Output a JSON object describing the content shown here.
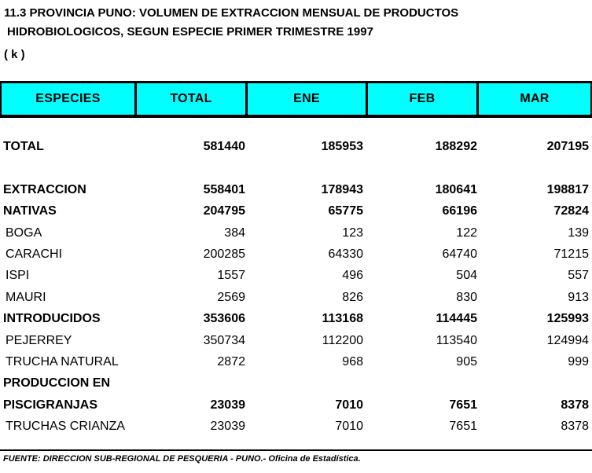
{
  "title": {
    "line1": "11.3 PROVINCIA PUNO: VOLUMEN DE EXTRACCION MENSUAL DE PRODUCTOS",
    "line2": "HIDROBIOLOGICOS, SEGUN ESPECIE PRIMER TRIMESTRE 1997",
    "unit": "( k )"
  },
  "table": {
    "columns": [
      "ESPECIES",
      "TOTAL",
      "ENE",
      "FEB",
      "MAR"
    ],
    "rows": [
      {
        "label": "TOTAL",
        "bold": true,
        "values": [
          "581440",
          "185953",
          "188292",
          "207195"
        ]
      },
      {
        "label": "",
        "bold": false,
        "values": [
          "",
          "",
          "",
          ""
        ]
      },
      {
        "label": "EXTRACCION",
        "bold": true,
        "values": [
          "558401",
          "178943",
          "180641",
          "198817"
        ]
      },
      {
        "label": "NATIVAS",
        "bold": true,
        "values": [
          "204795",
          "65775",
          "66196",
          "72824"
        ]
      },
      {
        "label": "BOGA",
        "bold": false,
        "values": [
          "384",
          "123",
          "122",
          "139"
        ]
      },
      {
        "label": "CARACHI",
        "bold": false,
        "values": [
          "200285",
          "64330",
          "64740",
          "71215"
        ]
      },
      {
        "label": "ISPI",
        "bold": false,
        "values": [
          "1557",
          "496",
          "504",
          "557"
        ]
      },
      {
        "label": "MAURI",
        "bold": false,
        "values": [
          "2569",
          "826",
          "830",
          "913"
        ]
      },
      {
        "label": "INTRODUCIDOS",
        "bold": true,
        "values": [
          "353606",
          "113168",
          "114445",
          "125993"
        ]
      },
      {
        "label": "PEJERREY",
        "bold": false,
        "values": [
          "350734",
          "112200",
          "113540",
          "124994"
        ]
      },
      {
        "label": "TRUCHA NATURAL",
        "bold": false,
        "values": [
          "2872",
          "968",
          "905",
          "999"
        ]
      },
      {
        "label": "PRODUCCION EN",
        "bold": true,
        "values": [
          "",
          "",
          "",
          ""
        ]
      },
      {
        "label": "PISCIGRANJAS",
        "bold": true,
        "values": [
          "23039",
          "7010",
          "7651",
          "8378"
        ]
      },
      {
        "label": "TRUCHAS CRIANZA",
        "bold": false,
        "values": [
          "23039",
          "7010",
          "7651",
          "8378"
        ]
      }
    ]
  },
  "footer": {
    "source": "FUENTE: DIRECCION SUB-REGIONAL DE PESQUERIA - PUNO.- Oficina de Estadística."
  },
  "colors": {
    "header_bg": "#00FFFF",
    "border": "#000000",
    "text": "#000000",
    "background": "#FFFFFF"
  }
}
